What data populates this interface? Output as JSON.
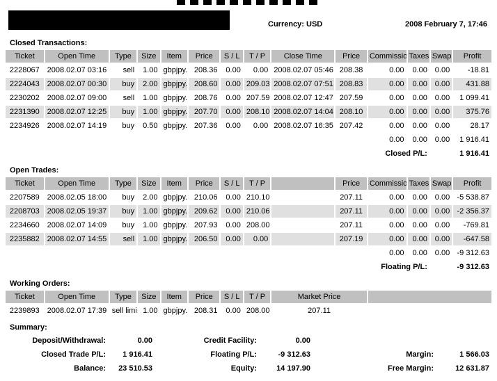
{
  "page": {
    "currency": "Currency: USD",
    "datetime": "2008 February 7, 17:46"
  },
  "colors": {
    "table_header_bg": "#c0c0c0",
    "alt_row_bg": "#e0e0e0",
    "text": "#000000",
    "redaction": "#000000"
  },
  "closed_transactions": {
    "title": "Closed Transactions:",
    "columns": [
      "Ticket",
      "Open Time",
      "Type",
      "Size",
      "Item",
      "Price",
      "S / L",
      "T / P",
      "Close Time",
      "Price",
      "Commission",
      "Taxes",
      "Swap",
      "Profit"
    ],
    "rows": [
      [
        "2228067",
        "2008.02.07 03:16",
        "sell",
        "1.00",
        "gbpjpy.",
        "208.36",
        "0.00",
        "0.00",
        "2008.02.07 05:46",
        "208.38",
        "0.00",
        "0.00",
        "0.00",
        "-18.81"
      ],
      [
        "2224043",
        "2008.02.07 00:30",
        "buy",
        "2.00",
        "gbpjpy.",
        "208.60",
        "0.00",
        "209.03",
        "2008.02.07 07:51",
        "208.83",
        "0.00",
        "0.00",
        "0.00",
        "431.88"
      ],
      [
        "2230202",
        "2008.02.07 09:00",
        "sell",
        "1.00",
        "gbpjpy.",
        "208.76",
        "0.00",
        "207.59",
        "2008.02.07 12:47",
        "207.59",
        "0.00",
        "0.00",
        "0.00",
        "1 099.41"
      ],
      [
        "2231390",
        "2008.02.07 12:25",
        "buy",
        "1.00",
        "gbpjpy.",
        "207.70",
        "0.00",
        "208.10",
        "2008.02.07 14:04",
        "208.10",
        "0.00",
        "0.00",
        "0.00",
        "375.76"
      ],
      [
        "2234926",
        "2008.02.07 14:19",
        "buy",
        "0.50",
        "gbpjpy.",
        "207.36",
        "0.00",
        "0.00",
        "2008.02.07 16:35",
        "207.42",
        "0.00",
        "0.00",
        "0.00",
        "28.17"
      ]
    ],
    "totals": {
      "commission": "0.00",
      "taxes": "0.00",
      "swap": "0.00",
      "profit": "1 916.41"
    },
    "pl_label": "Closed P/L:",
    "pl_value": "1 916.41"
  },
  "open_trades": {
    "title": "Open Trades:",
    "columns": [
      "Ticket",
      "Open Time",
      "Type",
      "Size",
      "Item",
      "Price",
      "S / L",
      "T / P",
      "",
      "Price",
      "Commission",
      "Taxes",
      "Swap",
      "Profit"
    ],
    "rows": [
      [
        "2207589",
        "2008.02.05 18:00",
        "buy",
        "2.00",
        "gbpjpy.",
        "210.06",
        "0.00",
        "210.10",
        "",
        "207.11",
        "0.00",
        "0.00",
        "0.00",
        "-5 538.87"
      ],
      [
        "2208703",
        "2008.02.05 19:37",
        "buy",
        "1.00",
        "gbpjpy.",
        "209.62",
        "0.00",
        "210.06",
        "",
        "207.11",
        "0.00",
        "0.00",
        "0.00",
        "-2 356.37"
      ],
      [
        "2234660",
        "2008.02.07 14:09",
        "buy",
        "1.00",
        "gbpjpy.",
        "207.93",
        "0.00",
        "208.00",
        "",
        "207.11",
        "0.00",
        "0.00",
        "0.00",
        "-769.81"
      ],
      [
        "2235882",
        "2008.02.07 14:55",
        "sell",
        "1.00",
        "gbpjpy.",
        "206.50",
        "0.00",
        "0.00",
        "",
        "207.19",
        "0.00",
        "0.00",
        "0.00",
        "-647.58"
      ]
    ],
    "totals": {
      "commission": "0.00",
      "taxes": "0.00",
      "swap": "0.00",
      "profit": "-9 312.63"
    },
    "pl_label": "Floating P/L:",
    "pl_value": "-9 312.63"
  },
  "working_orders": {
    "title": "Working Orders:",
    "columns": [
      "Ticket",
      "Open Time",
      "Type",
      "Size",
      "Item",
      "Price",
      "S / L",
      "T / P",
      "Market Price",
      ""
    ],
    "row": [
      "2239893",
      "2008.02.07 17:39",
      "sell limit",
      "1.00",
      "gbpjpy.",
      "208.31",
      "0.00",
      "208.00",
      "207.11",
      ""
    ]
  },
  "summary": {
    "title": "Summary:",
    "rows": [
      {
        "c1_label": "Deposit/Withdrawal:",
        "c1_value": "0.00",
        "c2_label": "Credit Facility:",
        "c2_value": "0.00",
        "c3_label": "",
        "c3_value": ""
      },
      {
        "c1_label": "Closed Trade P/L:",
        "c1_value": "1 916.41",
        "c2_label": "Floating P/L:",
        "c2_value": "-9 312.63",
        "c3_label": "Margin:",
        "c3_value": "1 566.03"
      },
      {
        "c1_label": "Balance:",
        "c1_value": "23 510.53",
        "c2_label": "Equity:",
        "c2_value": "14 197.90",
        "c3_label": "Free Margin:",
        "c3_value": "12 631.87"
      }
    ]
  }
}
